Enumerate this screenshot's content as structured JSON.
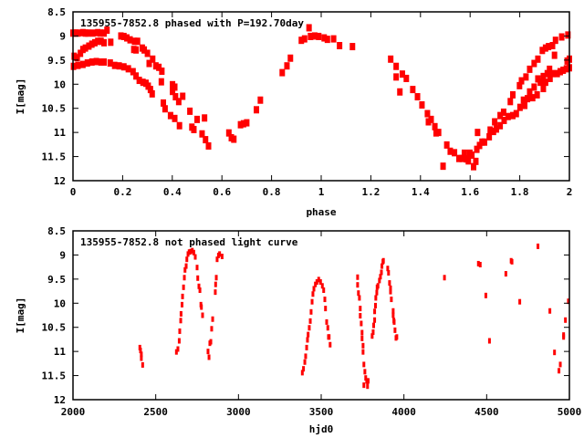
{
  "chart_data": [
    {
      "type": "scatter",
      "title": "135955-7852.8 phased with P=192.70day",
      "xlabel": "phase",
      "ylabel": "I[mag]",
      "xlim": [
        0,
        2
      ],
      "ylim": [
        12,
        8.5
      ],
      "y_inverted": true,
      "xticks": [
        "0",
        "0.2",
        "0.4",
        "0.6",
        "0.8",
        "1",
        "1.2",
        "1.4",
        "1.6",
        "1.8",
        "2"
      ],
      "xtick_values": [
        0,
        0.2,
        0.4,
        0.6,
        0.8,
        1,
        1.2,
        1.4,
        1.6,
        1.8,
        2
      ],
      "yticks": [
        "8.5",
        "9",
        "9.5",
        "10",
        "10.5",
        "11",
        "11.5",
        "12"
      ],
      "ytick_values": [
        8.5,
        9,
        9.5,
        10,
        10.5,
        11,
        11.5,
        12
      ],
      "grid": false,
      "marker_color": "#ff0000",
      "points": [
        [
          0,
          8.94
        ],
        [
          0.01,
          8.94
        ],
        [
          0.02,
          8.94
        ],
        [
          0.04,
          8.93
        ],
        [
          0.05,
          8.94
        ],
        [
          0.06,
          8.94
        ],
        [
          0.08,
          8.94
        ],
        [
          0.1,
          8.93
        ],
        [
          0.11,
          8.94
        ],
        [
          0.125,
          8.94
        ],
        [
          0.137,
          8.88
        ],
        [
          0.152,
          9.13
        ],
        [
          0.193,
          9.0
        ],
        [
          0.205,
          9.01
        ],
        [
          0.217,
          9.04
        ],
        [
          0.23,
          9.08
        ],
        [
          0.248,
          9.11
        ],
        [
          0.26,
          9.11
        ],
        [
          0.245,
          9.28
        ],
        [
          0.254,
          9.29
        ],
        [
          0.279,
          9.25
        ],
        [
          0.287,
          9.29
        ],
        [
          0.3,
          9.36
        ],
        [
          0.321,
          9.48
        ],
        [
          0.307,
          9.57
        ],
        [
          0.334,
          9.62
        ],
        [
          0.346,
          9.65
        ],
        [
          0.358,
          9.73
        ],
        [
          0.356,
          9.95
        ],
        [
          0.364,
          10.39
        ],
        [
          0.371,
          10.51
        ],
        [
          0.401,
          10.01
        ],
        [
          0.41,
          10.06
        ],
        [
          0.401,
          10.15
        ],
        [
          0.413,
          10.26
        ],
        [
          0.426,
          10.36
        ],
        [
          0.442,
          10.25
        ],
        [
          0.393,
          10.65
        ],
        [
          0.41,
          10.71
        ],
        [
          0.429,
          10.86
        ],
        [
          0.471,
          10.56
        ],
        [
          0.479,
          10.89
        ],
        [
          0.487,
          10.94
        ],
        [
          0.5,
          10.73
        ],
        [
          0.53,
          10.7
        ],
        [
          0.52,
          11.03
        ],
        [
          0.534,
          11.15
        ],
        [
          0.546,
          11.28
        ],
        [
          0.005,
          9.42
        ],
        [
          0.017,
          9.45
        ],
        [
          0.03,
          9.36
        ],
        [
          0.04,
          9.28
        ],
        [
          0.05,
          9.25
        ],
        [
          0.064,
          9.21
        ],
        [
          0.076,
          9.17
        ],
        [
          0.088,
          9.14
        ],
        [
          0.1,
          9.11
        ],
        [
          0.113,
          9.11
        ],
        [
          0.125,
          9.14
        ],
        [
          0.002,
          9.63
        ],
        [
          0.02,
          9.61
        ],
        [
          0.04,
          9.59
        ],
        [
          0.058,
          9.56
        ],
        [
          0.076,
          9.54
        ],
        [
          0.094,
          9.53
        ],
        [
          0.113,
          9.54
        ],
        [
          0.125,
          9.54
        ],
        [
          0.15,
          9.56
        ],
        [
          0.168,
          9.61
        ],
        [
          0.186,
          9.62
        ],
        [
          0.205,
          9.64
        ],
        [
          0.223,
          9.68
        ],
        [
          0.242,
          9.74
        ],
        [
          0.254,
          9.83
        ],
        [
          0.267,
          9.92
        ],
        [
          0.282,
          9.96
        ],
        [
          0.294,
          9.98
        ],
        [
          0.303,
          10.04
        ],
        [
          0.312,
          10.11
        ],
        [
          0.319,
          10.2
        ],
        [
          0.628,
          11.01
        ],
        [
          0.638,
          11.11
        ],
        [
          0.648,
          11.14
        ],
        [
          0.675,
          10.84
        ],
        [
          0.687,
          10.82
        ],
        [
          0.7,
          10.8
        ],
        [
          0.739,
          10.53
        ],
        [
          0.755,
          10.33
        ],
        [
          0.843,
          9.76
        ],
        [
          0.862,
          9.62
        ],
        [
          0.876,
          9.46
        ],
        [
          0.92,
          9.09
        ],
        [
          0.933,
          9.06
        ],
        [
          0.951,
          8.83
        ],
        [
          0.957,
          9.01
        ],
        [
          0.974,
          9.0
        ],
        [
          0.99,
          9.01
        ],
        [
          1.012,
          9.04
        ],
        [
          1.025,
          9.07
        ],
        [
          1.05,
          9.06
        ],
        [
          1.074,
          9.2
        ],
        [
          1.126,
          9.22
        ],
        [
          1.28,
          9.48
        ],
        [
          1.302,
          9.63
        ],
        [
          1.302,
          9.85
        ],
        [
          1.327,
          9.79
        ],
        [
          1.343,
          9.88
        ],
        [
          1.317,
          10.16
        ],
        [
          1.369,
          10.11
        ],
        [
          1.388,
          10.26
        ],
        [
          1.406,
          10.43
        ],
        [
          1.428,
          10.61
        ],
        [
          1.432,
          10.78
        ],
        [
          1.443,
          10.73
        ],
        [
          1.458,
          10.88
        ],
        [
          1.463,
          11.01
        ],
        [
          1.473,
          11.0
        ],
        [
          1.506,
          11.26
        ],
        [
          1.52,
          11.39
        ],
        [
          1.537,
          11.42
        ],
        [
          1.491,
          11.7
        ],
        [
          1.555,
          11.54
        ],
        [
          1.568,
          11.54
        ],
        [
          1.577,
          11.43
        ],
        [
          1.586,
          11.55
        ],
        [
          1.593,
          11.59
        ],
        [
          1.599,
          11.43
        ],
        [
          1.607,
          11.47
        ],
        [
          1.614,
          11.71
        ],
        [
          1.623,
          11.6
        ],
        [
          1.627,
          11.35
        ],
        [
          1.63,
          11.0
        ],
        [
          1.638,
          11.27
        ],
        [
          1.648,
          11.2
        ],
        [
          1.658,
          11.2
        ],
        [
          1.677,
          11.09
        ],
        [
          1.681,
          10.95
        ],
        [
          1.694,
          10.98
        ],
        [
          1.699,
          10.78
        ],
        [
          1.706,
          10.93
        ],
        [
          1.721,
          10.86
        ],
        [
          1.721,
          10.65
        ],
        [
          1.735,
          10.58
        ],
        [
          1.737,
          10.75
        ],
        [
          1.753,
          10.67
        ],
        [
          1.762,
          10.36
        ],
        [
          1.772,
          10.22
        ],
        [
          1.772,
          10.65
        ],
        [
          1.786,
          10.61
        ],
        [
          1.799,
          10.03
        ],
        [
          1.801,
          10.48
        ],
        [
          1.807,
          9.93
        ],
        [
          1.815,
          10.33
        ],
        [
          1.82,
          10.44
        ],
        [
          1.825,
          9.85
        ],
        [
          1.831,
          10.3
        ],
        [
          1.84,
          9.69
        ],
        [
          1.84,
          10.16
        ],
        [
          1.852,
          10.28
        ],
        [
          1.858,
          9.57
        ],
        [
          1.858,
          10.06
        ],
        [
          1.87,
          10.22
        ],
        [
          1.873,
          9.48
        ],
        [
          1.873,
          9.89
        ],
        [
          1.883,
          9.96
        ],
        [
          1.891,
          9.3
        ],
        [
          1.895,
          9.84
        ],
        [
          1.895,
          10.09
        ],
        [
          1.904,
          9.96
        ],
        [
          1.904,
          9.25
        ],
        [
          1.911,
          9.78
        ],
        [
          1.916,
          9.22
        ],
        [
          1.92,
          9.69
        ],
        [
          1.922,
          9.88
        ],
        [
          1.932,
          9.2
        ],
        [
          1.94,
          9.4
        ],
        [
          1.944,
          9.09
        ],
        [
          1.932,
          9.78
        ],
        [
          1.951,
          9.78
        ],
        [
          1.963,
          9.74
        ],
        [
          1.969,
          9.02
        ],
        [
          1.975,
          9.71
        ],
        [
          1.988,
          9.68
        ],
        [
          1.994,
          8.98
        ],
        [
          1.991,
          9.52
        ],
        [
          2.0,
          9.48
        ],
        [
          2.0,
          9.66
        ]
      ]
    },
    {
      "type": "scatter",
      "title": "135955-7852.8 not phased light curve",
      "xlabel": "hjd0",
      "ylabel": "I[mag]",
      "xlim": [
        2000,
        5000
      ],
      "ylim": [
        12,
        8.5
      ],
      "y_inverted": true,
      "xticks": [
        "2000",
        "2500",
        "3000",
        "3500",
        "4000",
        "4500",
        "5000"
      ],
      "xtick_values": [
        2000,
        2500,
        3000,
        3500,
        4000,
        4500,
        5000
      ],
      "yticks": [
        "8.5",
        "9",
        "9.5",
        "10",
        "10.5",
        "11",
        "11.5",
        "12"
      ],
      "ytick_values": [
        8.5,
        9,
        9.5,
        10,
        10.5,
        11,
        11.5,
        12
      ],
      "grid": false,
      "marker_color": "#ff0000",
      "points": [
        [
          2404,
          10.92
        ],
        [
          2408,
          10.98
        ],
        [
          2413,
          11.06
        ],
        [
          2413,
          11.14
        ],
        [
          2421,
          11.28
        ],
        [
          2625,
          11.01
        ],
        [
          2634,
          10.95
        ],
        [
          2642,
          10.78
        ],
        [
          2645,
          10.58
        ],
        [
          2651,
          10.36
        ],
        [
          2653,
          10.22
        ],
        [
          2659,
          10.03
        ],
        [
          2662,
          9.86
        ],
        [
          2668,
          9.67
        ],
        [
          2673,
          9.47
        ],
        [
          2677,
          9.31
        ],
        [
          2684,
          9.23
        ],
        [
          2688,
          9.09
        ],
        [
          2695,
          8.98
        ],
        [
          2702,
          8.94
        ],
        [
          2711,
          8.93
        ],
        [
          2721,
          8.91
        ],
        [
          2730,
          8.95
        ],
        [
          2739,
          9.04
        ],
        [
          2750,
          9.26
        ],
        [
          2754,
          9.48
        ],
        [
          2761,
          9.65
        ],
        [
          2767,
          9.73
        ],
        [
          2773,
          10.03
        ],
        [
          2776,
          10.08
        ],
        [
          2783,
          10.25
        ],
        [
          2816,
          11.0
        ],
        [
          2822,
          11.12
        ],
        [
          2827,
          10.83
        ],
        [
          2833,
          10.8
        ],
        [
          2838,
          10.53
        ],
        [
          2844,
          10.33
        ],
        [
          2860,
          9.77
        ],
        [
          2862,
          9.61
        ],
        [
          2866,
          9.47
        ],
        [
          2871,
          9.09
        ],
        [
          2879,
          9.01
        ],
        [
          2886,
          8.98
        ],
        [
          2901,
          9.03
        ],
        [
          3386,
          11.44
        ],
        [
          3393,
          11.36
        ],
        [
          3401,
          11.22
        ],
        [
          3406,
          11.1
        ],
        [
          3412,
          10.92
        ],
        [
          3417,
          10.76
        ],
        [
          3421,
          10.65
        ],
        [
          3428,
          10.51
        ],
        [
          3434,
          10.37
        ],
        [
          3439,
          10.18
        ],
        [
          3445,
          9.97
        ],
        [
          3450,
          9.81
        ],
        [
          3456,
          9.7
        ],
        [
          3465,
          9.61
        ],
        [
          3474,
          9.56
        ],
        [
          3485,
          9.51
        ],
        [
          3496,
          9.56
        ],
        [
          3507,
          9.64
        ],
        [
          3515,
          9.73
        ],
        [
          3522,
          9.92
        ],
        [
          3526,
          10.11
        ],
        [
          3533,
          10.39
        ],
        [
          3540,
          10.51
        ],
        [
          3544,
          10.7
        ],
        [
          3548,
          10.7
        ],
        [
          3554,
          10.86
        ],
        [
          3720,
          9.46
        ],
        [
          3720,
          9.62
        ],
        [
          3725,
          9.79
        ],
        [
          3731,
          9.89
        ],
        [
          3736,
          10.11
        ],
        [
          3736,
          10.26
        ],
        [
          3742,
          10.42
        ],
        [
          3747,
          10.61
        ],
        [
          3747,
          10.73
        ],
        [
          3753,
          10.88
        ],
        [
          3753,
          11.01
        ],
        [
          3758,
          11.27
        ],
        [
          3764,
          11.42
        ],
        [
          3769,
          11.55
        ],
        [
          3775,
          11.61
        ],
        [
          3784,
          11.61
        ],
        [
          3758,
          11.7
        ],
        [
          3780,
          11.72
        ],
        [
          3808,
          10.68
        ],
        [
          3814,
          10.6
        ],
        [
          3817,
          10.46
        ],
        [
          3823,
          10.35
        ],
        [
          3823,
          10.17
        ],
        [
          3828,
          10.05
        ],
        [
          3830,
          9.89
        ],
        [
          3836,
          9.78
        ],
        [
          3838,
          9.67
        ],
        [
          3843,
          9.64
        ],
        [
          3852,
          9.53
        ],
        [
          3858,
          9.45
        ],
        [
          3864,
          9.36
        ],
        [
          3867,
          9.23
        ],
        [
          3873,
          9.14
        ],
        [
          3876,
          9.12
        ],
        [
          3902,
          9.28
        ],
        [
          3907,
          9.37
        ],
        [
          3913,
          9.58
        ],
        [
          3919,
          9.69
        ],
        [
          3919,
          9.76
        ],
        [
          3924,
          9.92
        ],
        [
          3935,
          10.16
        ],
        [
          3935,
          10.25
        ],
        [
          3939,
          10.36
        ],
        [
          3941,
          10.39
        ],
        [
          3946,
          10.56
        ],
        [
          3952,
          10.72
        ],
        [
          3957,
          10.7
        ],
        [
          4245,
          9.47
        ],
        [
          4450,
          9.18
        ],
        [
          4461,
          9.2
        ],
        [
          4495,
          9.84
        ],
        [
          4517,
          10.78
        ],
        [
          4616,
          9.39
        ],
        [
          4648,
          9.12
        ],
        [
          4653,
          9.14
        ],
        [
          4700,
          9.97
        ],
        [
          4810,
          8.82
        ],
        [
          4882,
          10.16
        ],
        [
          4910,
          11.02
        ],
        [
          4937,
          11.4
        ],
        [
          4945,
          11.27
        ],
        [
          4965,
          10.66
        ],
        [
          4965,
          10.7
        ],
        [
          4976,
          10.35
        ],
        [
          4994,
          9.96
        ]
      ]
    }
  ]
}
